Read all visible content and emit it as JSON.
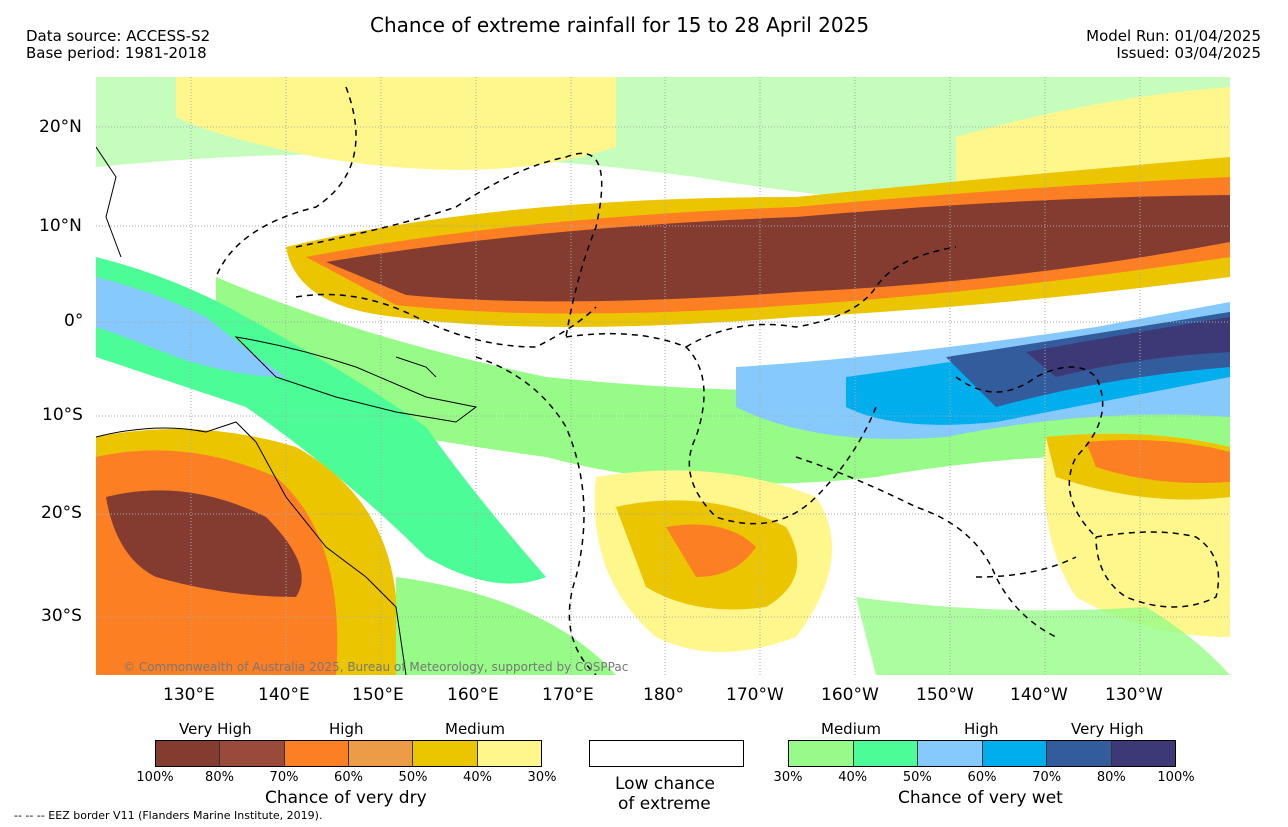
{
  "header": {
    "title": "Chance of extreme rainfall for 15 to 28 April 2025",
    "data_source": "Data source: ACCESS-S2",
    "base_period": "Base period: 1981-2018",
    "model_run": "Model Run: 01/04/2025",
    "issued": "Issued: 03/04/2025"
  },
  "axes": {
    "lat_labels": [
      "20°N",
      "10°N",
      "0°",
      "10°S",
      "20°S",
      "30°S"
    ],
    "lon_labels": [
      "130°E",
      "140°E",
      "150°E",
      "160°E",
      "170°E",
      "180°",
      "170°W",
      "160°W",
      "150°W",
      "140°W",
      "130°W"
    ]
  },
  "map": {
    "copyright": "© Commonwealth of Australia 2025, Bureau of Meteorology, supported by COSPPac"
  },
  "legend": {
    "dry": {
      "labels": [
        "Very High",
        "High",
        "Medium"
      ],
      "ticks": [
        "100%",
        "80%",
        "70%",
        "60%",
        "50%",
        "40%",
        "30%"
      ],
      "colors": [
        "#843c31",
        "#9a4a3a",
        "#fd7f23",
        "#ec9c47",
        "#eac500",
        "#fff68c"
      ],
      "caption": "Chance of very dry"
    },
    "none": {
      "caption_line1": "Low chance",
      "caption_line2": "of extreme"
    },
    "wet": {
      "labels": [
        "Medium",
        "High",
        "Very High"
      ],
      "ticks": [
        "30%",
        "40%",
        "50%",
        "60%",
        "70%",
        "80%",
        "100%"
      ],
      "colors": [
        "#96fc87",
        "#4cfc96",
        "#86c9fc",
        "#00aded",
        "#335c9d",
        "#3c3976"
      ],
      "caption": "Chance of very wet"
    }
  },
  "footer": {
    "eez_note": "-- -- -- EEZ border V11 (Flanders Marine Institute, 2019)."
  }
}
